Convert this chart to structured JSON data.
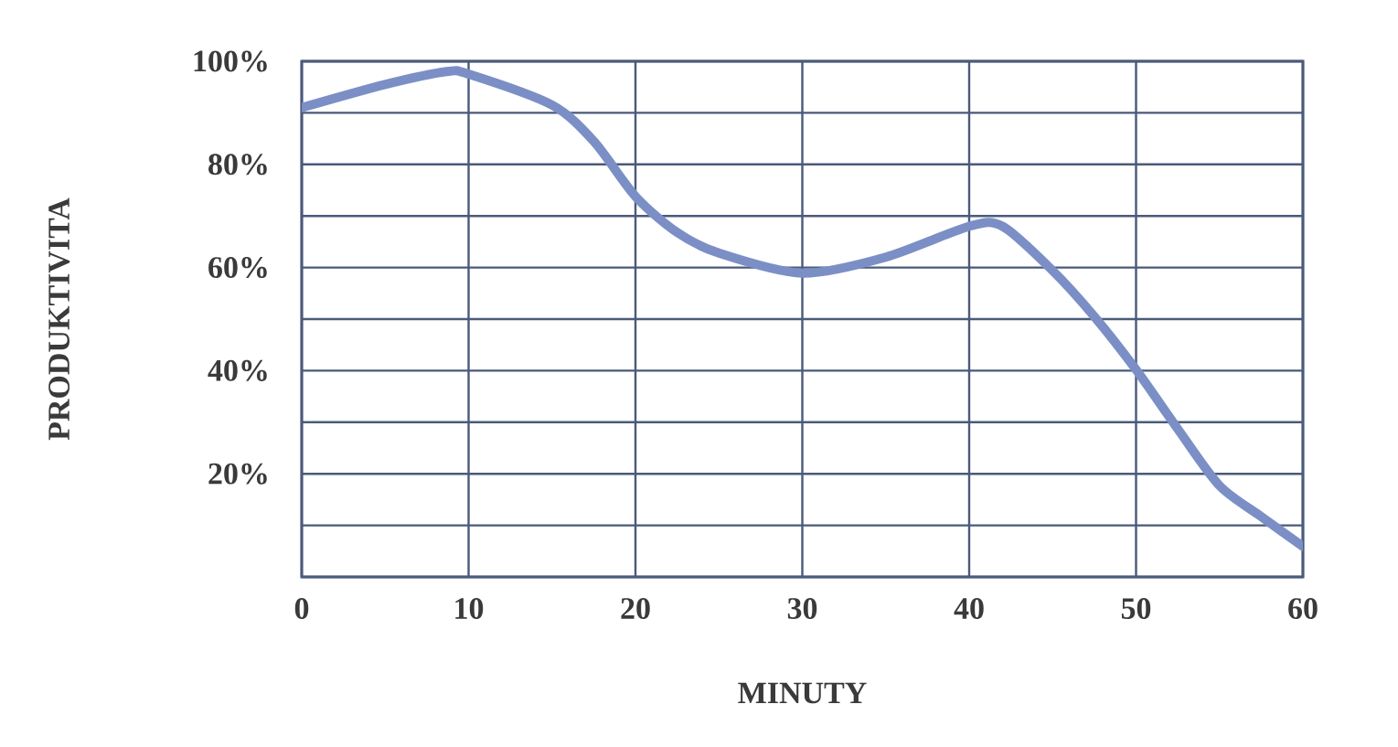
{
  "chart_data": {
    "type": "line",
    "xlabel": "MINUTY",
    "ylabel": "PRODUKTIVITA",
    "x": [
      0,
      5,
      8.7,
      10,
      15,
      17.5,
      20,
      22.5,
      25,
      30,
      35,
      40,
      42,
      45,
      47.5,
      50,
      52.5,
      55,
      57.5,
      60
    ],
    "series": [
      {
        "color": "#7b8fc6",
        "values": [
          91,
          95.5,
          98,
          97.5,
          91.5,
          84.5,
          73.8,
          66.8,
          62.8,
          58.9,
          62,
          68,
          68,
          59.4,
          50.5,
          40.2,
          28.7,
          17.7,
          11.7,
          5.9
        ]
      }
    ],
    "xlim": [
      0,
      60
    ],
    "ylim": [
      0,
      100
    ],
    "xticks": [
      0,
      10,
      20,
      30,
      40,
      50,
      60
    ],
    "yticks": [
      {
        "value": 0,
        "label": null
      },
      {
        "value": 10,
        "label": null
      },
      {
        "value": 20,
        "label": "20%"
      },
      {
        "value": 30,
        "label": null
      },
      {
        "value": 40,
        "label": "40%"
      },
      {
        "value": 50,
        "label": null
      },
      {
        "value": 60,
        "label": "60%"
      },
      {
        "value": 70,
        "label": null
      },
      {
        "value": 80,
        "label": "80%"
      },
      {
        "value": 90,
        "label": null
      },
      {
        "value": 100,
        "label": "100%"
      }
    ],
    "grid": true
  }
}
